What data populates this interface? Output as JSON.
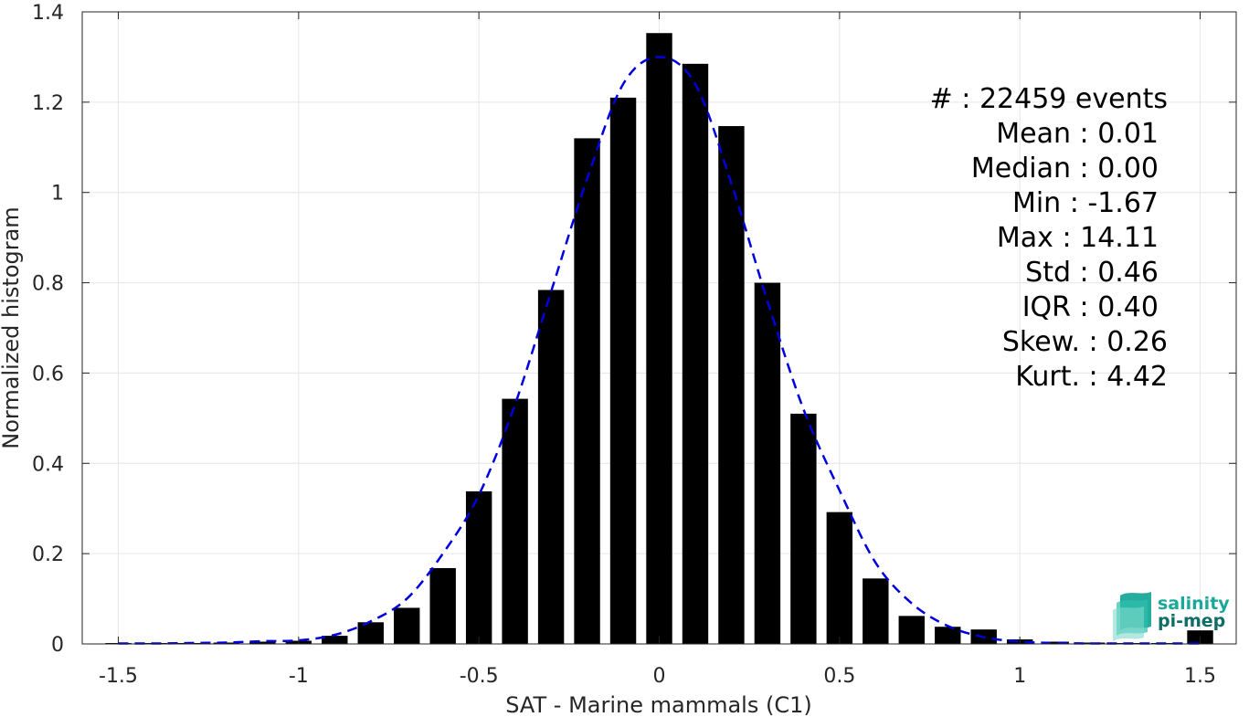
{
  "chart_data": {
    "type": "bar",
    "xlabel": "SAT - Marine mammals (C1)",
    "ylabel": "Normalized histogram",
    "xlim": [
      -1.6,
      1.6
    ],
    "ylim": [
      0,
      1.4
    ],
    "xticks": [
      -1.5,
      -1,
      -0.5,
      0,
      0.5,
      1,
      1.5
    ],
    "xtick_labels": [
      "-1.5",
      "-1",
      "-0.5",
      "0",
      "0.5",
      "1",
      "1.5"
    ],
    "yticks": [
      0,
      0.2,
      0.4,
      0.6,
      0.8,
      1,
      1.2,
      1.4
    ],
    "ytick_labels": [
      "0",
      "0.2",
      "0.4",
      "0.6",
      "0.8",
      "1",
      "1.2",
      "1.4"
    ],
    "grid": true,
    "bar_color": "#000000",
    "fit_color": "#0000dd",
    "bars": {
      "x": [
        -1.5,
        -1.4,
        -1.3,
        -1.2,
        -1.1,
        -1.0,
        -0.9,
        -0.8,
        -0.7,
        -0.6,
        -0.5,
        -0.4,
        -0.3,
        -0.2,
        -0.1,
        0.0,
        0.1,
        0.2,
        0.3,
        0.4,
        0.5,
        0.6,
        0.7,
        0.8,
        0.9,
        1.0,
        1.1,
        1.2,
        1.3,
        1.4,
        1.5
      ],
      "values": [
        0.002,
        0.002,
        0.002,
        0.003,
        0.005,
        0.007,
        0.018,
        0.048,
        0.08,
        0.168,
        0.338,
        0.543,
        0.784,
        1.12,
        1.21,
        1.353,
        1.285,
        1.147,
        0.8,
        0.51,
        0.292,
        0.145,
        0.062,
        0.038,
        0.032,
        0.01,
        0.005,
        0.003,
        0.002,
        0.002,
        0.03
      ]
    },
    "fit_curve": {
      "style": "dashed",
      "x": [
        -1.5,
        -1.4,
        -1.3,
        -1.2,
        -1.1,
        -1.0,
        -0.9,
        -0.8,
        -0.7,
        -0.6,
        -0.5,
        -0.4,
        -0.3,
        -0.2,
        -0.1,
        0.0,
        0.1,
        0.2,
        0.3,
        0.4,
        0.5,
        0.6,
        0.7,
        0.8,
        0.9,
        1.0,
        1.1,
        1.2,
        1.3,
        1.4,
        1.5
      ],
      "values": [
        0.001,
        0.001,
        0.002,
        0.003,
        0.006,
        0.008,
        0.02,
        0.05,
        0.1,
        0.2,
        0.33,
        0.53,
        0.78,
        1.03,
        1.24,
        1.3,
        1.24,
        1.02,
        0.76,
        0.52,
        0.34,
        0.18,
        0.09,
        0.04,
        0.015,
        0.005,
        0.002,
        0.001,
        0.001,
        0.001,
        0.001
      ]
    }
  },
  "stats": [
    {
      "text": "#  : 22459 events"
    },
    {
      "text": "Mean : 0.01"
    },
    {
      "text": "Median : 0.00"
    },
    {
      "text": "Min : -1.67"
    },
    {
      "text": "Max : 14.11"
    },
    {
      "text": "Std : 0.46"
    },
    {
      "text": "IQR : 0.40"
    },
    {
      "text": "Skew. : 0.26"
    },
    {
      "text": "Kurt. : 4.42"
    }
  ],
  "logo": {
    "line1": "salinity",
    "line2": "pi-mep",
    "color": "#1aa89a"
  }
}
